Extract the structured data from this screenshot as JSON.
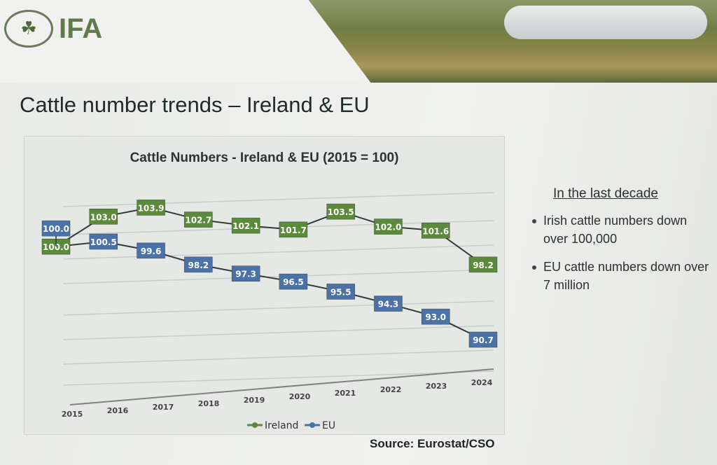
{
  "header": {
    "logo_text": "IFA",
    "slide_title": "Cattle number trends – Ireland & EU"
  },
  "side_panel": {
    "heading": "In the last decade",
    "bullets": [
      "Irish cattle numbers down over 100,000",
      "EU cattle numbers down over 7 million"
    ]
  },
  "source": "Source: Eurostat/CSO",
  "chart_data": {
    "type": "line",
    "title": "Cattle Numbers - Ireland & EU (2015 = 100)",
    "categories": [
      "2015",
      "2016",
      "2017",
      "2018",
      "2019",
      "2020",
      "2021",
      "2022",
      "2023",
      "2024"
    ],
    "series": [
      {
        "name": "Ireland",
        "color": "#5b8a3a",
        "values": [
          100.0,
          103.0,
          103.9,
          102.7,
          102.1,
          101.7,
          103.5,
          102.0,
          101.6,
          98.2
        ]
      },
      {
        "name": "EU",
        "color": "#4a72a8",
        "values": [
          100.0,
          100.5,
          99.6,
          98.2,
          97.3,
          96.5,
          95.5,
          94.3,
          93.0,
          90.7
        ]
      }
    ],
    "grid": true,
    "data_labels": true,
    "legend": "bottom",
    "xlabel": "",
    "ylabel": ""
  }
}
